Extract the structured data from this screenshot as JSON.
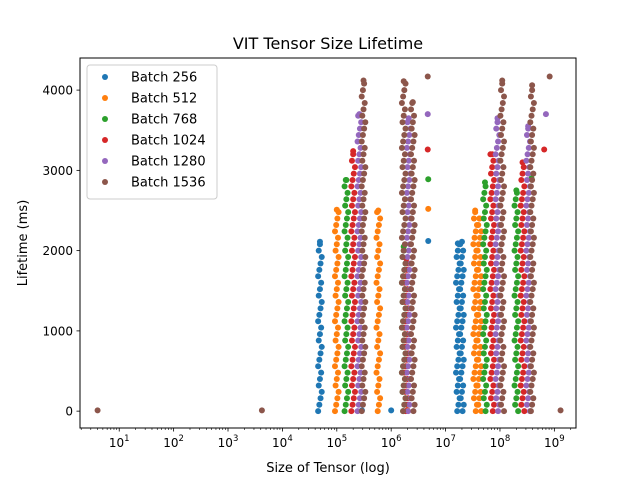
{
  "chart_data": {
    "type": "scatter",
    "title": "VIT Tensor Size Lifetime",
    "xlabel": "Size of Tensor (log)",
    "ylabel": "Lifetime (ms)",
    "xscale": "log",
    "xlim": [
      1.9,
      2500000000
    ],
    "ylim": [
      -210,
      4400
    ],
    "x_ticks": [
      {
        "value": 10,
        "base": "10",
        "exp": "1"
      },
      {
        "value": 100,
        "base": "10",
        "exp": "2"
      },
      {
        "value": 1000,
        "base": "10",
        "exp": "3"
      },
      {
        "value": 10000,
        "base": "10",
        "exp": "4"
      },
      {
        "value": 100000,
        "base": "10",
        "exp": "5"
      },
      {
        "value": 1000000,
        "base": "10",
        "exp": "6"
      },
      {
        "value": 10000000,
        "base": "10",
        "exp": "7"
      },
      {
        "value": 100000000,
        "base": "10",
        "exp": "8"
      },
      {
        "value": 1000000000,
        "base": "10",
        "exp": "9"
      }
    ],
    "y_ticks": [
      {
        "value": 0,
        "label": "0"
      },
      {
        "value": 1000,
        "label": "1000"
      },
      {
        "value": 2000,
        "label": "2000"
      },
      {
        "value": 3000,
        "label": "3000"
      },
      {
        "value": 4000,
        "label": "4000"
      }
    ],
    "legend_position": "top-left",
    "grid": false,
    "series": [
      {
        "name": "Batch 256",
        "color": "#1f77b4",
        "columns": [
          {
            "x": 49000,
            "ymin": 0,
            "ymax": 2110
          },
          {
            "x": 16800000,
            "ymin": 0,
            "ymax": 2090
          },
          {
            "x": 20000000,
            "ymin": 0,
            "ymax": 2110
          }
        ],
        "points": [
          {
            "x": 290000,
            "y": 10
          },
          {
            "x": 1000000,
            "y": 10
          },
          {
            "x": 4800000,
            "y": 2120
          }
        ]
      },
      {
        "name": "Batch 512",
        "color": "#ff7f0e",
        "columns": [
          {
            "x": 100000,
            "ymin": 0,
            "ymax": 2510
          },
          {
            "x": 580000,
            "ymin": 0,
            "ymax": 2500
          },
          {
            "x": 35000000,
            "ymin": 0,
            "ymax": 2500
          },
          {
            "x": 42000000,
            "ymin": 0,
            "ymax": 2400
          }
        ],
        "points": [
          {
            "x": 4800000,
            "y": 2520
          },
          {
            "x": 2000000,
            "y": 10
          }
        ]
      },
      {
        "name": "Batch 768",
        "color": "#2ca02c",
        "columns": [
          {
            "x": 150000,
            "ymin": 0,
            "ymax": 2880
          },
          {
            "x": 1700000,
            "ymin": 0,
            "ymax": 2050
          },
          {
            "x": 53000000,
            "ymin": 0,
            "ymax": 2850
          },
          {
            "x": 200000000,
            "ymin": 0,
            "ymax": 2750
          }
        ],
        "points": [
          {
            "x": 4800000,
            "y": 2890
          },
          {
            "x": 380000000,
            "y": 2900
          }
        ]
      },
      {
        "name": "Batch 1024",
        "color": "#d62728",
        "columns": [
          {
            "x": 200000,
            "ymin": 0,
            "ymax": 3240
          },
          {
            "x": 1900000,
            "ymin": 0,
            "ymax": 1900
          },
          {
            "x": 72000000,
            "ymin": 0,
            "ymax": 3200
          },
          {
            "x": 260000000,
            "ymin": 0,
            "ymax": 3100
          }
        ],
        "points": [
          {
            "x": 4700000,
            "y": 3260
          },
          {
            "x": 650000000,
            "y": 3260
          }
        ]
      },
      {
        "name": "Batch 1280",
        "color": "#9467bd",
        "columns": [
          {
            "x": 260000,
            "ymin": 0,
            "ymax": 3700
          },
          {
            "x": 2100000,
            "ymin": 0,
            "ymax": 3650
          },
          {
            "x": 90000000,
            "ymin": 0,
            "ymax": 3650
          },
          {
            "x": 330000000,
            "ymin": 0,
            "ymax": 3550
          }
        ],
        "points": [
          {
            "x": 4700000,
            "y": 3700
          },
          {
            "x": 700000000,
            "y": 3700
          }
        ]
      },
      {
        "name": "Batch 1536",
        "color": "#8c564b",
        "columns": [
          {
            "x": 310000,
            "ymin": 0,
            "ymax": 4120
          },
          {
            "x": 1700000,
            "ymin": 0,
            "ymax": 4110
          },
          {
            "x": 2500000,
            "ymin": 0,
            "ymax": 3850
          },
          {
            "x": 110000000,
            "ymin": 0,
            "ymax": 4120
          },
          {
            "x": 390000000,
            "ymin": 0,
            "ymax": 4060
          }
        ],
        "points": [
          {
            "x": 4,
            "y": 10
          },
          {
            "x": 4200,
            "y": 10
          },
          {
            "x": 4700000,
            "y": 4170
          },
          {
            "x": 820000000,
            "y": 4170
          },
          {
            "x": 1300000000,
            "y": 10
          }
        ]
      }
    ]
  }
}
